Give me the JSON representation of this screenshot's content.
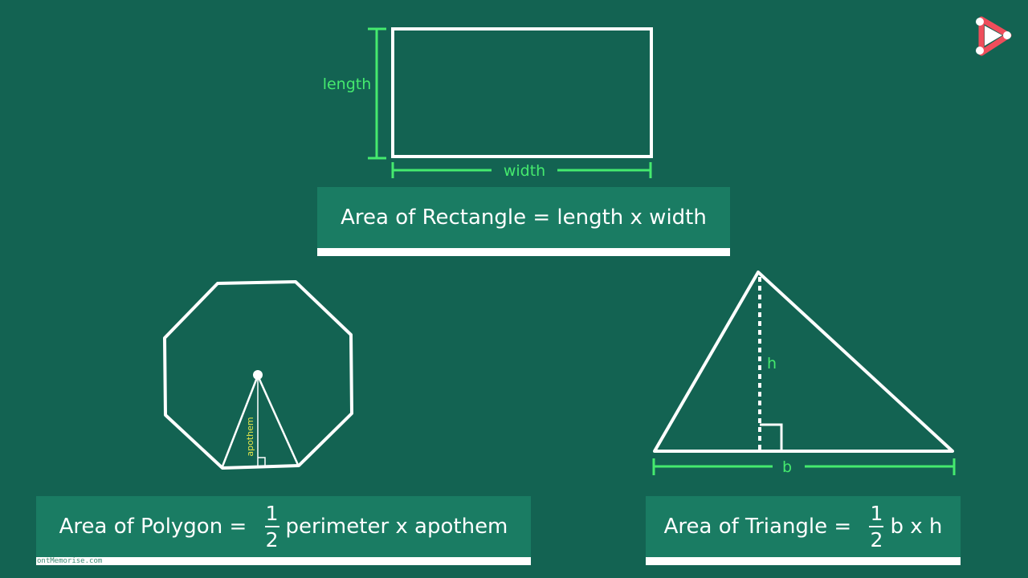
{
  "rectangle": {
    "length_label": "length",
    "width_label": "width",
    "formula": "Area of Rectangle = length x width"
  },
  "polygon": {
    "apothem_label": "apothem",
    "formula_prefix": "Area of Polygon = ",
    "frac_num": "1",
    "frac_den": "2",
    "formula_suffix": "perimeter x apothem"
  },
  "triangle": {
    "height_label": "h",
    "base_label": "b",
    "formula_prefix": "Area of Triangle = ",
    "frac_num": "1",
    "frac_den": "2",
    "formula_suffix": "b x h"
  },
  "watermark": "ontMemorise.com",
  "colors": {
    "background": "#136352",
    "formula_box": "#1a7c63",
    "measure_green": "#45ea6e",
    "apothem_yellow": "#e8e84a",
    "logo_red": "#ef4d5b"
  },
  "icons": {
    "logo": "play-logo-icon"
  }
}
